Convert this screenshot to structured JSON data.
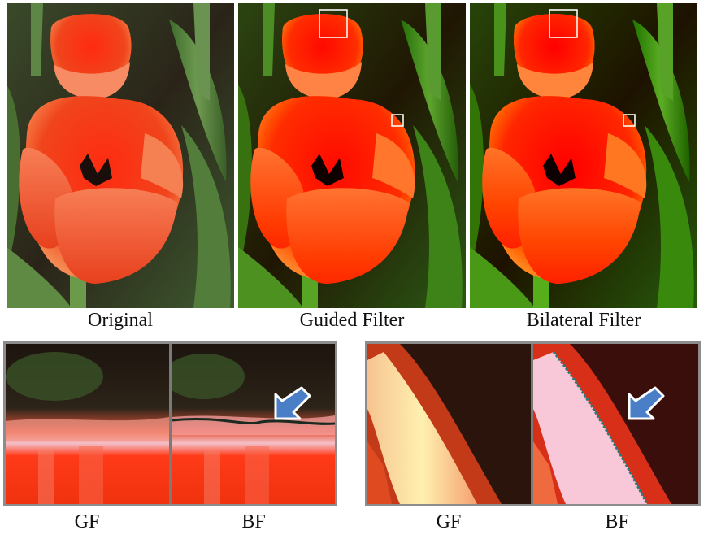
{
  "figure": {
    "top_captions": [
      "Original",
      "Guided Filter",
      "Bilateral Filter"
    ],
    "bottom_left_captions": [
      "GF",
      "BF"
    ],
    "bottom_right_captions": [
      "GF",
      "BF"
    ]
  },
  "colors": {
    "petal_red": "#f03a1a",
    "petal_orange": "#f57a4a",
    "leaf_green": "#4f7a3a",
    "background_dark": "#2a1f14",
    "arrow_blue": "#4a7fc8",
    "frame_gray": "#8c8c8c"
  },
  "icons": [
    "arrow-icon"
  ]
}
